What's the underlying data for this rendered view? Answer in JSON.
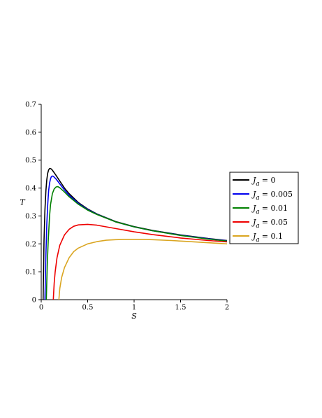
{
  "chart_data": {
    "type": "line",
    "title": "",
    "xlabel": "S",
    "ylabel": "T",
    "xlim": [
      0,
      2
    ],
    "ylim": [
      0,
      0.7
    ],
    "x_ticks": [
      0,
      0.5,
      1,
      1.5,
      2
    ],
    "x_tick_labels": [
      "0",
      "0.5",
      "1",
      "1.5",
      "2"
    ],
    "y_ticks": [
      0,
      0.1,
      0.2,
      0.3,
      0.4,
      0.5,
      0.6,
      0.7
    ],
    "y_tick_labels": [
      "0",
      "0.1",
      "0.2",
      "0.3",
      "0.4",
      "0.5",
      "0.6",
      "0.7"
    ],
    "grid": false,
    "legend_position": "right",
    "series": [
      {
        "name": "Ja = 0",
        "legend_symbol": "J",
        "legend_sub": "a",
        "legend_value": "= 0",
        "color": "#000000",
        "x": [
          0.02,
          0.03,
          0.04,
          0.05,
          0.06,
          0.07,
          0.08,
          0.09,
          0.1,
          0.11,
          0.12,
          0.14,
          0.16,
          0.2,
          0.25,
          0.3,
          0.4,
          0.5,
          0.6,
          0.8,
          1.0,
          1.2,
          1.5,
          1.8,
          2.0
        ],
        "y": [
          0.0,
          0.21,
          0.32,
          0.39,
          0.43,
          0.453,
          0.465,
          0.47,
          0.47,
          0.468,
          0.464,
          0.455,
          0.445,
          0.425,
          0.4,
          0.38,
          0.348,
          0.325,
          0.307,
          0.28,
          0.262,
          0.248,
          0.232,
          0.219,
          0.212
        ]
      },
      {
        "name": "Ja = 0.005",
        "legend_symbol": "J",
        "legend_sub": "a",
        "legend_value": "= 0.005",
        "color": "#0000ee",
        "x": [
          0.04,
          0.05,
          0.06,
          0.07,
          0.08,
          0.09,
          0.1,
          0.11,
          0.12,
          0.13,
          0.14,
          0.16,
          0.2,
          0.25,
          0.3,
          0.4,
          0.5,
          0.6,
          0.8,
          1.0,
          1.2,
          1.5,
          1.8,
          2.0
        ],
        "y": [
          0.0,
          0.16,
          0.27,
          0.34,
          0.39,
          0.418,
          0.433,
          0.441,
          0.443,
          0.442,
          0.439,
          0.432,
          0.415,
          0.393,
          0.374,
          0.345,
          0.323,
          0.306,
          0.279,
          0.261,
          0.247,
          0.231,
          0.218,
          0.211
        ]
      },
      {
        "name": "Ja = 0.01",
        "legend_symbol": "J",
        "legend_sub": "a",
        "legend_value": "= 0.01",
        "color": "#008000",
        "x": [
          0.055,
          0.065,
          0.075,
          0.09,
          0.1,
          0.12,
          0.14,
          0.16,
          0.18,
          0.2,
          0.25,
          0.3,
          0.4,
          0.5,
          0.6,
          0.8,
          1.0,
          1.2,
          1.5,
          1.8,
          2.0
        ],
        "y": [
          0.0,
          0.12,
          0.21,
          0.3,
          0.34,
          0.38,
          0.397,
          0.404,
          0.405,
          0.401,
          0.386,
          0.369,
          0.342,
          0.321,
          0.305,
          0.279,
          0.261,
          0.247,
          0.23,
          0.217,
          0.21
        ],
        "name_note": ""
      },
      {
        "name": "Ja = 0.05",
        "legend_symbol": "J",
        "legend_sub": "a",
        "legend_value": "= 0.05",
        "color": "#ee0000",
        "x": [
          0.13,
          0.14,
          0.15,
          0.17,
          0.2,
          0.25,
          0.3,
          0.35,
          0.4,
          0.5,
          0.6,
          0.7,
          0.8,
          1.0,
          1.2,
          1.5,
          1.8,
          2.0
        ],
        "y": [
          0.0,
          0.06,
          0.1,
          0.15,
          0.195,
          0.232,
          0.252,
          0.263,
          0.268,
          0.27,
          0.267,
          0.261,
          0.255,
          0.243,
          0.233,
          0.221,
          0.212,
          0.207
        ]
      },
      {
        "name": "Ja = 0.1",
        "legend_symbol": "J",
        "legend_sub": "a",
        "legend_value": "= 0.1",
        "color": "#daa520",
        "x": [
          0.19,
          0.2,
          0.22,
          0.25,
          0.3,
          0.35,
          0.4,
          0.5,
          0.6,
          0.7,
          0.8,
          0.9,
          1.0,
          1.1,
          1.2,
          1.4,
          1.6,
          1.8,
          2.0
        ],
        "y": [
          0.0,
          0.04,
          0.08,
          0.115,
          0.15,
          0.172,
          0.185,
          0.2,
          0.208,
          0.213,
          0.215,
          0.216,
          0.216,
          0.216,
          0.215,
          0.212,
          0.208,
          0.204,
          0.2
        ]
      }
    ]
  }
}
